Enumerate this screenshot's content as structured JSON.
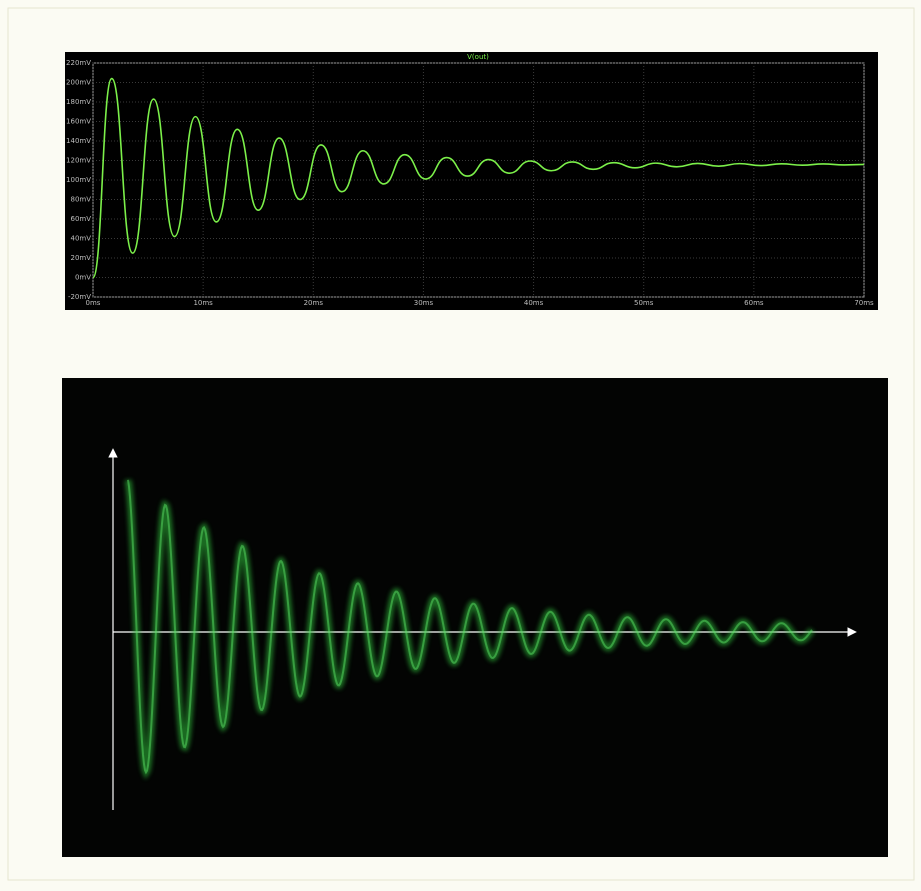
{
  "chart_data": {
    "type": "line",
    "title": "V(out)",
    "x": [
      0,
      1.7,
      3.6,
      5.5,
      7.4,
      9.3,
      11.2,
      13.1,
      15.0,
      16.9,
      18.8,
      20.7,
      22.6,
      24.5,
      26.4,
      28.3,
      30.2,
      32.1,
      34.0,
      35.9,
      37.8,
      39.7,
      41.6,
      43.5,
      45.4,
      47.3,
      49.2,
      51.1,
      53.0,
      54.9,
      56.8,
      58.7,
      60.6,
      62.5,
      64.4,
      66.3,
      68.2,
      70
    ],
    "series": [
      {
        "name": "V(out)",
        "color": "#7cf04a",
        "values": [
          0,
          204,
          25,
          183,
          42,
          165,
          57,
          152,
          69,
          143,
          80,
          136,
          88,
          130,
          96,
          126,
          101,
          123,
          104,
          121,
          107,
          119.5,
          109.5,
          118.5,
          111,
          117.8,
          112.5,
          117.3,
          113.5,
          117,
          114.2,
          116.8,
          114.8,
          116.6,
          115.2,
          116.5,
          115.5,
          116
        ]
      }
    ],
    "xlim": [
      0,
      70
    ],
    "xticks": [
      {
        "value": 0,
        "label": "0ms"
      },
      {
        "value": 10,
        "label": "10ms"
      },
      {
        "value": 20,
        "label": "20ms"
      },
      {
        "value": 30,
        "label": "30ms"
      },
      {
        "value": 40,
        "label": "40ms"
      },
      {
        "value": 50,
        "label": "50ms"
      },
      {
        "value": 60,
        "label": "60ms"
      },
      {
        "value": 70,
        "label": "70ms"
      }
    ],
    "ylim": [
      -20,
      220
    ],
    "yticks": [
      {
        "value": -20,
        "label": "-20mV"
      },
      {
        "value": 0,
        "label": "0mV"
      },
      {
        "value": 20,
        "label": "20mV"
      },
      {
        "value": 40,
        "label": "40mV"
      },
      {
        "value": 60,
        "label": "60mV"
      },
      {
        "value": 80,
        "label": "80mV"
      },
      {
        "value": 100,
        "label": "100mV"
      },
      {
        "value": 120,
        "label": "120mV"
      },
      {
        "value": 140,
        "label": "140mV"
      },
      {
        "value": 160,
        "label": "160mV"
      },
      {
        "value": 180,
        "label": "180mV"
      },
      {
        "value": 200,
        "label": "200mV"
      },
      {
        "value": 220,
        "label": "220mV"
      }
    ],
    "grid": true
  }
}
